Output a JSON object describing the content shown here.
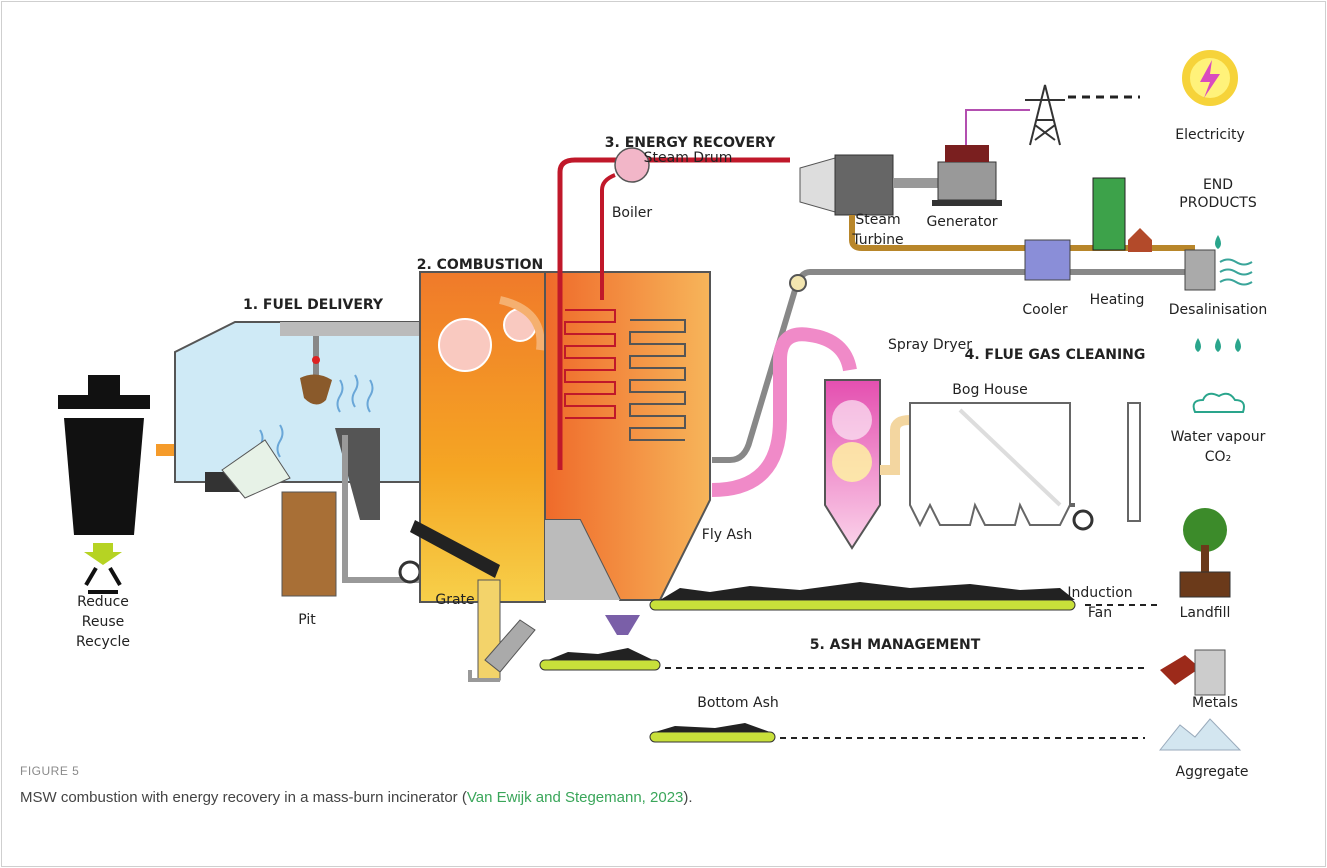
{
  "figure": {
    "label": "FIGURE 5",
    "caption": {
      "text": "MSW combustion with energy recovery in a mass-burn incinerator (",
      "citation": "Van Ewijk and Stegemann, 2023",
      "tail": ")."
    }
  },
  "stages": [
    "1. FUEL DELIVERY",
    "2. COMBUSTION",
    "3. ENERGY RECOVERY",
    "4. FLUE GAS CLEANING",
    "5. ASH MANAGEMENT"
  ],
  "recycle": [
    "Reduce",
    "Reuse",
    "Recycle"
  ],
  "components": {
    "pit": "Pit",
    "grate": "Grate",
    "steam_drum": "Steam Drum",
    "boiler": "Boiler",
    "steam_turbine": [
      "Steam",
      "Turbine"
    ],
    "generator": "Generator",
    "cooler": "Cooler",
    "heating": "Heating",
    "desalinisation": "Desalinisation",
    "spray_dryer": "Spray Dryer",
    "bag_house": "Bog House",
    "fly_ash": "Fly Ash",
    "induction_fan": [
      "Induction",
      "Fan"
    ],
    "bottom_ash": "Bottom Ash"
  },
  "end_products": {
    "title": [
      "END",
      "PRODUCTS"
    ],
    "electricity": "Electricity",
    "water_vapour": [
      "Water vapour",
      "CO₂"
    ],
    "landfill": "Landfill",
    "metals": "Metals",
    "aggregate": "Aggregate"
  }
}
